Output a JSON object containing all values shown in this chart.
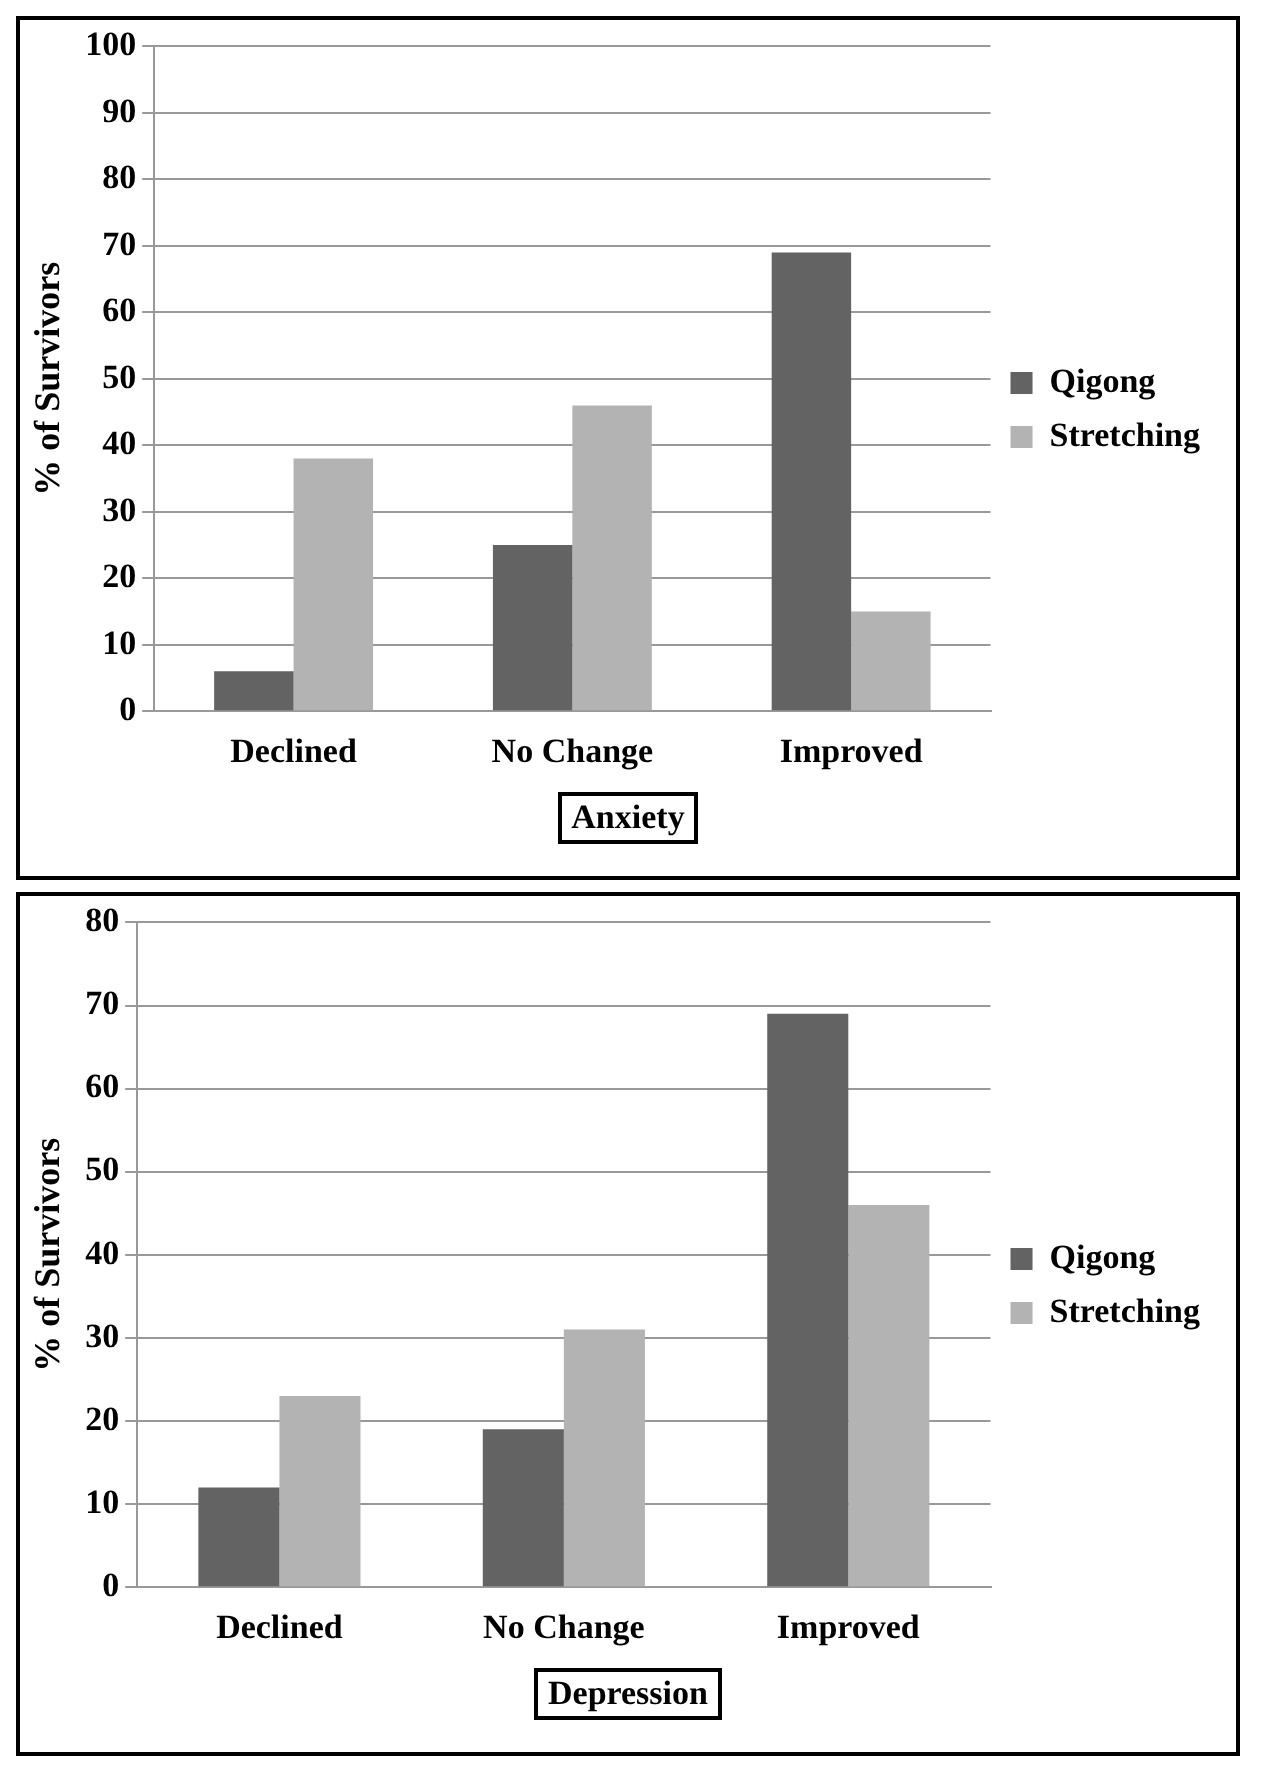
{
  "chart_data": [
    {
      "type": "bar",
      "xlabel": "Anxiety",
      "ylabel": "% of Survivors",
      "categories": [
        "Declined",
        "No Change",
        "Improved"
      ],
      "series": [
        {
          "name": "Qigong",
          "color": "#636363",
          "values": [
            6,
            25,
            69
          ]
        },
        {
          "name": "Stretching",
          "color": "#b3b3b3",
          "values": [
            38,
            46,
            15
          ]
        }
      ],
      "ylim": [
        0,
        100
      ],
      "yticks": [
        0,
        10,
        20,
        30,
        40,
        50,
        60,
        70,
        80,
        90,
        100
      ],
      "grid": "y",
      "legend": "right"
    },
    {
      "type": "bar",
      "xlabel": "Depression",
      "ylabel": "% of Survivors",
      "categories": [
        "Declined",
        "No Change",
        "Improved"
      ],
      "series": [
        {
          "name": "Qigong",
          "color": "#636363",
          "values": [
            12,
            19,
            69
          ]
        },
        {
          "name": "Stretching",
          "color": "#b3b3b3",
          "values": [
            23,
            31,
            46
          ]
        }
      ],
      "ylim": [
        0,
        80
      ],
      "yticks": [
        0,
        10,
        20,
        30,
        40,
        50,
        60,
        70,
        80
      ],
      "grid": "y",
      "legend": "right"
    }
  ]
}
